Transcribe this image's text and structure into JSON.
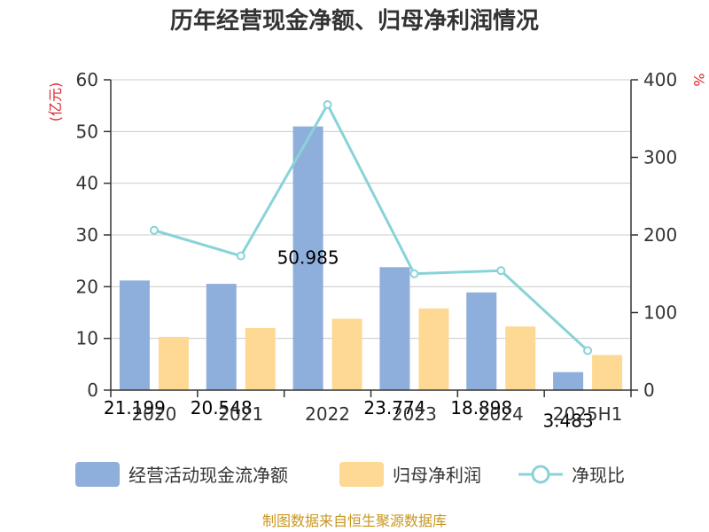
{
  "chart_data": {
    "type": "bar",
    "title": "历年经营现金净额、归母净利润情况",
    "categories": [
      "2020",
      "2021",
      "2022",
      "2023",
      "2024",
      "2025H1"
    ],
    "series": [
      {
        "name": "经营活动现金流净额",
        "type": "bar",
        "axis": "left",
        "color": "#8eaedb",
        "values": [
          21.199,
          20.548,
          50.985,
          23.774,
          18.898,
          3.483
        ]
      },
      {
        "name": "归母净利润",
        "type": "bar",
        "axis": "left",
        "color": "#fdd994",
        "values": [
          10.3,
          12.0,
          13.8,
          15.8,
          12.3,
          6.8
        ]
      },
      {
        "name": "净现比",
        "type": "line",
        "axis": "right",
        "color": "#89d3d8",
        "values": [
          206,
          173,
          368,
          150,
          154,
          51
        ]
      }
    ],
    "data_labels": [
      "21.199",
      "20.548",
      "50.985",
      "23.774",
      "18.898",
      "3.483"
    ],
    "y_left": {
      "label": "(亿元)",
      "min": 0,
      "max": 60,
      "ticks": [
        "0",
        "10",
        "20",
        "30",
        "40",
        "50",
        "60"
      ]
    },
    "y_right": {
      "label": "%",
      "min": 0,
      "max": 400,
      "ticks": [
        "0",
        "100",
        "200",
        "300",
        "400"
      ]
    },
    "grid": true,
    "legend_position": "bottom",
    "source": "制图数据来自恒生聚源数据库",
    "unit_color": "#e0242b",
    "source_color": "#c8961e",
    "grid_color": "#cccccc",
    "axis_color": "#333333"
  }
}
